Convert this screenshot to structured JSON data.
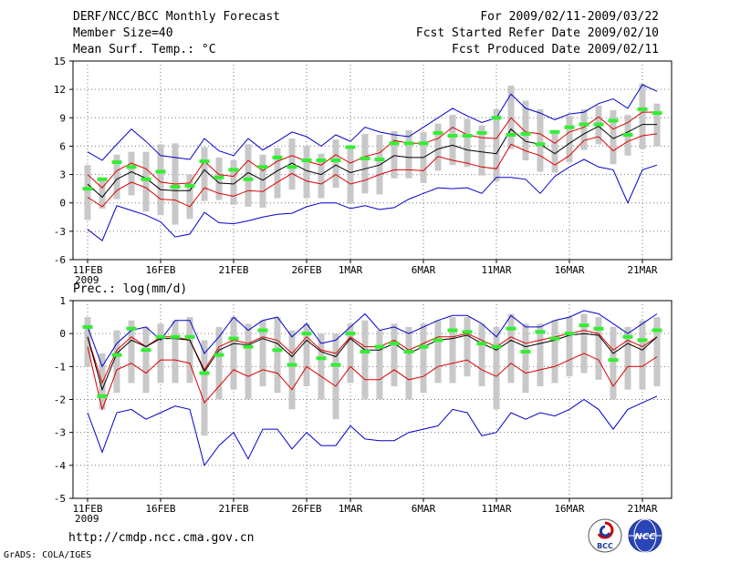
{
  "header": {
    "title": "DERF/NCC/BCC Monthly Forecast",
    "member_size": "Member Size=40",
    "variable": "Mean Surf. Temp.: °C",
    "period": "For 2009/02/11-2009/03/22",
    "started": "Fcst Started Refer Date 2009/02/10",
    "produced": "Fcst Produced Date 2009/02/11"
  },
  "panel2_label": "Prec.: log(mm/d)",
  "footer": {
    "url": "http://cmdp.ncc.cma.gov.cn",
    "grads": "GrADS: COLA/IGES",
    "logo_bcc": "BCC",
    "logo_ncc": "NCC"
  },
  "colors": {
    "box": "#c8c8c8",
    "observed": "#33ee33",
    "extreme": "#0000cc",
    "spread": "#dd0000",
    "mean": "#000000"
  },
  "chart_data": [
    {
      "type": "line",
      "name": "temperature",
      "title": "Mean Surf. Temp.: °C",
      "ylim": [
        -6,
        15
      ],
      "yticks": [
        -6,
        -3,
        0,
        3,
        6,
        9,
        12,
        15
      ],
      "x_tick_labels": [
        {
          "day": 1,
          "label": "11FEB",
          "sub": "2009"
        },
        {
          "day": 6,
          "label": "16FEB"
        },
        {
          "day": 11,
          "label": "21FEB"
        },
        {
          "day": 16,
          "label": "26FEB"
        },
        {
          "day": 19,
          "label": "1MAR"
        },
        {
          "day": 24,
          "label": "6MAR"
        },
        {
          "day": 29,
          "label": "11MAR"
        },
        {
          "day": 34,
          "label": "16MAR"
        },
        {
          "day": 39,
          "label": "21MAR"
        }
      ],
      "days": 40,
      "series": [
        {
          "name": "ensemble max",
          "color": "blue",
          "values": [
            5.4,
            4.5,
            6.2,
            7.8,
            6.5,
            5.0,
            4.8,
            4.6,
            6.8,
            5.5,
            5.0,
            6.8,
            5.6,
            6.5,
            7.5,
            7.0,
            6.0,
            7.2,
            6.5,
            8.0,
            7.5,
            7.2,
            7.0,
            8.0,
            9.0,
            10.0,
            9.2,
            8.5,
            9.0,
            11.5,
            10.0,
            9.5,
            8.8,
            9.4,
            9.6,
            10.5,
            11.0,
            10.0,
            12.5,
            11.8
          ]
        },
        {
          "name": "ensemble upper",
          "color": "red",
          "values": [
            3.0,
            1.6,
            3.4,
            4.2,
            3.6,
            2.2,
            2.0,
            2.1,
            4.4,
            3.0,
            2.8,
            4.5,
            3.4,
            4.4,
            5.0,
            4.4,
            4.0,
            5.1,
            4.2,
            4.9,
            5.3,
            6.6,
            6.3,
            6.3,
            6.8,
            8.0,
            7.2,
            6.9,
            6.8,
            9.0,
            7.5,
            7.3,
            6.3,
            7.5,
            8.0,
            9.1,
            7.8,
            8.5,
            9.6,
            9.6
          ]
        },
        {
          "name": "ensemble mean",
          "color": "black",
          "values": [
            2.0,
            0.6,
            2.5,
            3.3,
            2.6,
            1.4,
            1.3,
            1.3,
            3.5,
            2.1,
            2.0,
            3.2,
            2.4,
            3.4,
            4.2,
            3.4,
            3.0,
            4.0,
            3.2,
            3.6,
            4.0,
            5.0,
            4.8,
            4.8,
            5.7,
            6.1,
            5.6,
            5.4,
            5.2,
            7.8,
            6.5,
            6.2,
            5.2,
            6.3,
            7.3,
            8.1,
            6.8,
            7.5,
            8.3,
            8.3
          ]
        },
        {
          "name": "ensemble lower",
          "color": "red",
          "values": [
            0.6,
            -0.4,
            1.3,
            2.2,
            1.6,
            0.4,
            0.3,
            -0.4,
            1.6,
            1.0,
            0.7,
            1.3,
            1.2,
            2.2,
            3.1,
            2.3,
            2.0,
            3.0,
            2.0,
            2.4,
            3.0,
            3.5,
            3.5,
            3.4,
            4.9,
            4.5,
            4.2,
            3.8,
            3.6,
            6.2,
            5.5,
            5.0,
            4.0,
            5.0,
            6.6,
            7.0,
            5.5,
            6.5,
            7.1,
            7.3
          ]
        },
        {
          "name": "ensemble min",
          "color": "blue",
          "values": [
            -2.8,
            -4.0,
            -0.3,
            -0.8,
            -1.3,
            -2.0,
            -3.6,
            -3.3,
            -1.0,
            -2.1,
            -2.2,
            -1.9,
            -1.5,
            -1.2,
            -1.1,
            -0.4,
            0.0,
            0.0,
            -0.6,
            -0.3,
            -0.7,
            -0.5,
            0.4,
            1.0,
            1.6,
            1.5,
            1.6,
            1.0,
            2.7,
            2.7,
            2.5,
            1.0,
            2.8,
            3.8,
            4.6,
            3.8,
            3.5,
            0.0,
            3.5,
            4.0
          ]
        },
        {
          "name": "observed",
          "color": "green",
          "values": [
            1.5,
            2.5,
            4.3,
            3.8,
            2.5,
            3.3,
            1.7,
            1.8,
            4.4,
            2.7,
            3.5,
            2.5,
            3.8,
            4.8,
            3.8,
            4.5,
            4.5,
            4.5,
            5.9,
            4.7,
            4.6,
            6.3,
            6.3,
            6.3,
            7.4,
            7.1,
            7.1,
            7.4,
            9.0,
            7.2,
            7.3,
            6.2,
            7.5,
            8.0,
            8.3,
            8.3,
            8.7,
            7.2,
            9.9,
            9.5
          ]
        },
        {
          "name": "box top",
          "color": "gray",
          "values": [
            4.0,
            2.6,
            5.1,
            5.4,
            5.4,
            6.2,
            6.3,
            3.0,
            5.9,
            4.8,
            4.5,
            6.2,
            5.1,
            5.8,
            6.8,
            6.0,
            5.2,
            6.7,
            5.7,
            7.3,
            7.2,
            7.6,
            7.7,
            7.5,
            8.4,
            9.3,
            8.9,
            8.2,
            9.9,
            12.4,
            10.8,
            9.9,
            7.7,
            9.2,
            9.9,
            10.3,
            9.8,
            9.3,
            12.6,
            10.5
          ]
        },
        {
          "name": "box bottom",
          "color": "gray",
          "values": [
            -1.8,
            -0.6,
            0.4,
            0.8,
            -0.9,
            -1.3,
            -2.3,
            -1.7,
            0.2,
            0.3,
            -0.2,
            -0.4,
            -0.5,
            0.5,
            1.4,
            0.5,
            0.5,
            1.6,
            -0.1,
            1.0,
            0.9,
            2.6,
            2.6,
            2.1,
            3.4,
            4.0,
            3.8,
            2.9,
            2.3,
            5.7,
            4.5,
            3.3,
            3.2,
            4.3,
            5.6,
            6.2,
            4.1,
            5.0,
            5.7,
            6.0
          ]
        }
      ]
    },
    {
      "type": "line",
      "name": "precipitation",
      "title": "Prec.: log(mm/d)",
      "ylim": [
        -5,
        1
      ],
      "yticks": [
        -5,
        -4,
        -3,
        -2,
        -1,
        0,
        1
      ],
      "x_tick_labels": [
        {
          "day": 1,
          "label": "11FEB",
          "sub": "2009"
        },
        {
          "day": 6,
          "label": "16FEB"
        },
        {
          "day": 11,
          "label": "21FEB"
        },
        {
          "day": 16,
          "label": "26FEB"
        },
        {
          "day": 19,
          "label": "1MAR"
        },
        {
          "day": 24,
          "label": "6MAR"
        },
        {
          "day": 29,
          "label": "11MAR"
        },
        {
          "day": 34,
          "label": "16MAR"
        },
        {
          "day": 39,
          "label": "21MAR"
        }
      ],
      "days": 40,
      "series": [
        {
          "name": "ensemble max",
          "color": "blue",
          "values": [
            0.2,
            -1.0,
            -0.3,
            0.1,
            0.2,
            -0.2,
            0.4,
            0.4,
            -0.6,
            -0.1,
            0.5,
            0.1,
            0.4,
            0.5,
            -0.1,
            0.3,
            -0.3,
            -0.2,
            0.2,
            0.6,
            0.1,
            0.2,
            0.0,
            0.2,
            0.4,
            0.55,
            0.55,
            0.3,
            -0.1,
            0.55,
            0.2,
            0.2,
            0.4,
            0.5,
            0.7,
            0.6,
            0.3,
            0.0,
            0.3,
            0.6
          ]
        },
        {
          "name": "ensemble upper",
          "color": "red",
          "values": [
            -0.1,
            -1.5,
            -0.5,
            -0.1,
            -0.4,
            -0.1,
            -0.1,
            -0.2,
            -1.1,
            -0.4,
            -0.2,
            -0.3,
            -0.1,
            -0.2,
            -0.6,
            -0.1,
            -0.5,
            -0.6,
            -0.1,
            -0.4,
            -0.4,
            -0.2,
            -0.5,
            -0.3,
            -0.1,
            -0.1,
            0.0,
            -0.2,
            -0.4,
            -0.1,
            -0.3,
            -0.2,
            -0.1,
            0.0,
            0.1,
            0.0,
            -0.5,
            -0.2,
            -0.4,
            -0.1
          ]
        },
        {
          "name": "ensemble mean",
          "color": "black",
          "values": [
            -0.1,
            -1.7,
            -0.6,
            -0.2,
            -0.4,
            -0.15,
            -0.15,
            -0.2,
            -1.15,
            -0.5,
            -0.3,
            -0.35,
            -0.15,
            -0.3,
            -0.7,
            -0.2,
            -0.55,
            -0.7,
            -0.15,
            -0.5,
            -0.5,
            -0.3,
            -0.6,
            -0.4,
            -0.2,
            -0.15,
            -0.05,
            -0.3,
            -0.5,
            -0.2,
            -0.4,
            -0.3,
            -0.2,
            -0.05,
            0.0,
            -0.05,
            -0.6,
            -0.3,
            -0.5,
            -0.1
          ]
        },
        {
          "name": "ensemble lower",
          "color": "red",
          "values": [
            -0.4,
            -2.3,
            -1.1,
            -0.9,
            -1.2,
            -0.8,
            -0.8,
            -0.9,
            -2.1,
            -1.6,
            -1.1,
            -1.3,
            -1.1,
            -1.2,
            -1.7,
            -1.0,
            -1.3,
            -1.6,
            -1.0,
            -1.4,
            -1.4,
            -1.1,
            -1.4,
            -1.3,
            -1.0,
            -0.9,
            -0.8,
            -1.1,
            -1.3,
            -0.9,
            -1.2,
            -1.1,
            -1.0,
            -0.8,
            -0.6,
            -0.8,
            -1.6,
            -1.0,
            -1.0,
            -0.7
          ]
        },
        {
          "name": "ensemble min",
          "color": "blue",
          "values": [
            -2.4,
            -3.6,
            -2.4,
            -2.3,
            -2.6,
            -2.4,
            -2.2,
            -2.3,
            -4.0,
            -3.4,
            -3.0,
            -3.8,
            -2.9,
            -2.9,
            -3.5,
            -3.0,
            -3.4,
            -3.4,
            -2.8,
            -3.2,
            -3.25,
            -3.25,
            -3.0,
            -2.9,
            -2.8,
            -2.3,
            -2.4,
            -3.1,
            -3.0,
            -2.4,
            -2.6,
            -2.4,
            -2.5,
            -2.3,
            -2.0,
            -2.3,
            -2.9,
            -2.3,
            -2.1,
            -1.9
          ]
        },
        {
          "name": "observed",
          "color": "green",
          "values": [
            0.2,
            -1.9,
            -0.65,
            0.15,
            -0.5,
            -0.1,
            -0.1,
            -0.1,
            -1.2,
            -0.65,
            -0.15,
            -0.4,
            0.1,
            -0.5,
            -0.95,
            0.0,
            -0.75,
            -0.95,
            0.0,
            -0.55,
            -0.4,
            -0.3,
            -0.55,
            -0.4,
            -0.2,
            0.1,
            0.05,
            -0.3,
            -0.4,
            0.15,
            -0.55,
            0.05,
            -0.15,
            0.0,
            0.25,
            0.15,
            -0.8,
            -0.1,
            -0.2,
            0.1
          ]
        },
        {
          "name": "box top",
          "color": "gray",
          "values": [
            0.5,
            -0.6,
            0.1,
            0.4,
            0.2,
            0.3,
            0.4,
            0.5,
            -0.2,
            0.2,
            0.5,
            0.3,
            0.4,
            0.5,
            0.1,
            0.3,
            0.0,
            0.0,
            0.3,
            0.4,
            0.1,
            0.3,
            0.2,
            0.3,
            0.4,
            0.5,
            0.5,
            0.3,
            0.2,
            0.6,
            0.3,
            0.3,
            0.4,
            0.5,
            0.6,
            0.5,
            0.2,
            0.2,
            0.4,
            0.5
          ]
        },
        {
          "name": "box bottom",
          "color": "gray",
          "values": [
            -1.0,
            -2.3,
            -1.8,
            -1.5,
            -1.8,
            -1.5,
            -1.5,
            -1.5,
            -3.1,
            -2.0,
            -1.7,
            -2.0,
            -1.6,
            -1.8,
            -2.3,
            -1.6,
            -2.0,
            -2.6,
            -1.5,
            -2.0,
            -2.0,
            -1.6,
            -2.0,
            -1.8,
            -1.5,
            -1.5,
            -1.3,
            -1.6,
            -2.3,
            -1.5,
            -1.8,
            -1.6,
            -1.5,
            -1.3,
            -1.2,
            -1.4,
            -2.0,
            -1.7,
            -1.7,
            -1.6
          ]
        }
      ]
    }
  ]
}
